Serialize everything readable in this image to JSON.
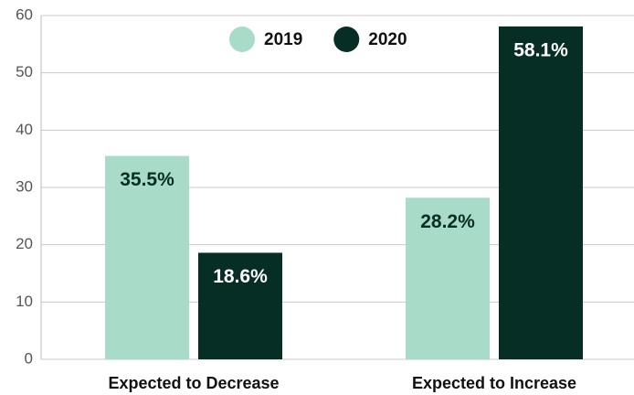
{
  "chart_data": {
    "type": "bar",
    "categories": [
      "Expected to Decrease",
      "Expected to Increase"
    ],
    "series": [
      {
        "name": "2019",
        "color": "#a8dbc8",
        "values": [
          35.5,
          28.2
        ],
        "value_labels": [
          "35.5%",
          "28.2%"
        ],
        "label_color": "#062e24"
      },
      {
        "name": "2020",
        "color": "#062e24",
        "values": [
          18.6,
          58.1
        ],
        "value_labels": [
          "18.6%",
          "58.1%"
        ],
        "label_color": "#ffffff"
      }
    ],
    "ylim": [
      0,
      60
    ],
    "yticks": [
      0,
      10,
      20,
      30,
      40,
      50,
      60
    ],
    "grid": true,
    "legend": "top"
  }
}
